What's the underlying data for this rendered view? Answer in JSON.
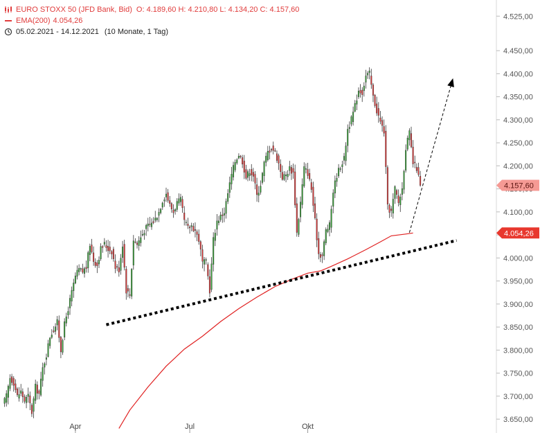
{
  "header": {
    "instrument": "EURO STOXX 50 (JFD Bank, Bid)",
    "ohlc": "O: 4.189,60  H: 4.210,80  L: 4.134,20  C: 4.157,60",
    "ema_label": "EMA(200)",
    "ema_value": "4.054,26",
    "date_range": "05.02.2021 - 14.12.2021",
    "period": "(10 Monate, 1 Tag)"
  },
  "colors": {
    "up": "#3aa33a",
    "down": "#e03b3b",
    "ema": "#e02020",
    "badge": "#e8382e",
    "badge_light": "#f59a94"
  },
  "chart_data": {
    "type": "candlestick",
    "ylim": [
      3620,
      4560
    ],
    "y_ticks": [
      "4.525,00",
      "4.450,00",
      "4.400,00",
      "4.350,00",
      "4.300,00",
      "4.250,00",
      "4.200,00",
      "4.150,00",
      "4.100,00",
      "4.050,00",
      "4.000,00",
      "3.950,00",
      "3.900,00",
      "3.850,00",
      "3.800,00",
      "3.750,00",
      "3.700,00",
      "3.650,00"
    ],
    "y_tick_values": [
      4525,
      4450,
      4400,
      4350,
      4300,
      4250,
      4200,
      4150,
      4100,
      4050,
      4000,
      3950,
      3900,
      3850,
      3800,
      3750,
      3700,
      3650
    ],
    "x_ticks": [
      {
        "label": "Apr",
        "day": 40
      },
      {
        "label": "Jul",
        "day": 103
      },
      {
        "label": "Okt",
        "day": 168
      }
    ],
    "x_day_range": [
      0,
      270
    ],
    "last_price_label": "4.157,60",
    "last_price": 4157.6,
    "ema_badge_label": "4.054,26",
    "ema_badge_value": 4054.26,
    "close_path": [
      [
        0,
        3680
      ],
      [
        2,
        3700
      ],
      [
        4,
        3740
      ],
      [
        6,
        3730
      ],
      [
        8,
        3700
      ],
      [
        10,
        3710
      ],
      [
        12,
        3690
      ],
      [
        14,
        3700
      ],
      [
        16,
        3665
      ],
      [
        18,
        3720
      ],
      [
        20,
        3705
      ],
      [
        22,
        3760
      ],
      [
        24,
        3790
      ],
      [
        26,
        3830
      ],
      [
        28,
        3845
      ],
      [
        30,
        3860
      ],
      [
        32,
        3800
      ],
      [
        34,
        3855
      ],
      [
        36,
        3890
      ],
      [
        38,
        3925
      ],
      [
        40,
        3960
      ],
      [
        42,
        3975
      ],
      [
        44,
        3970
      ],
      [
        46,
        3980
      ],
      [
        48,
        4030
      ],
      [
        50,
        3995
      ],
      [
        52,
        3985
      ],
      [
        54,
        4020
      ],
      [
        56,
        4030
      ],
      [
        58,
        4020
      ],
      [
        60,
        4015
      ],
      [
        62,
        3980
      ],
      [
        64,
        3975
      ],
      [
        66,
        4030
      ],
      [
        68,
        3930
      ],
      [
        70,
        3920
      ],
      [
        72,
        4040
      ],
      [
        74,
        4030
      ],
      [
        76,
        4045
      ],
      [
        78,
        4060
      ],
      [
        80,
        4070
      ],
      [
        82,
        4075
      ],
      [
        84,
        4085
      ],
      [
        86,
        4100
      ],
      [
        88,
        4125
      ],
      [
        90,
        4140
      ],
      [
        92,
        4115
      ],
      [
        94,
        4100
      ],
      [
        96,
        4120
      ],
      [
        98,
        4125
      ],
      [
        100,
        4080
      ],
      [
        102,
        4065
      ],
      [
        104,
        4070
      ],
      [
        106,
        4060
      ],
      [
        108,
        4040
      ],
      [
        110,
        3990
      ],
      [
        112,
        3990
      ],
      [
        114,
        3930
      ],
      [
        116,
        4040
      ],
      [
        118,
        4080
      ],
      [
        120,
        4090
      ],
      [
        122,
        4100
      ],
      [
        124,
        4140
      ],
      [
        126,
        4180
      ],
      [
        128,
        4210
      ],
      [
        130,
        4225
      ],
      [
        132,
        4210
      ],
      [
        134,
        4175
      ],
      [
        136,
        4190
      ],
      [
        138,
        4180
      ],
      [
        140,
        4135
      ],
      [
        142,
        4160
      ],
      [
        144,
        4205
      ],
      [
        146,
        4230
      ],
      [
        148,
        4240
      ],
      [
        150,
        4230
      ],
      [
        152,
        4205
      ],
      [
        154,
        4175
      ],
      [
        156,
        4180
      ],
      [
        158,
        4195
      ],
      [
        160,
        4185
      ],
      [
        162,
        4055
      ],
      [
        164,
        4120
      ],
      [
        166,
        4195
      ],
      [
        168,
        4185
      ],
      [
        170,
        4150
      ],
      [
        172,
        4080
      ],
      [
        174,
        4010
      ],
      [
        176,
        4005
      ],
      [
        178,
        4060
      ],
      [
        180,
        4070
      ],
      [
        182,
        4145
      ],
      [
        184,
        4180
      ],
      [
        186,
        4200
      ],
      [
        188,
        4215
      ],
      [
        190,
        4280
      ],
      [
        192,
        4300
      ],
      [
        194,
        4330
      ],
      [
        196,
        4365
      ],
      [
        198,
        4360
      ],
      [
        200,
        4395
      ],
      [
        202,
        4400
      ],
      [
        204,
        4350
      ],
      [
        206,
        4320
      ],
      [
        208,
        4295
      ],
      [
        210,
        4275
      ],
      [
        212,
        4110
      ],
      [
        214,
        4100
      ],
      [
        216,
        4150
      ],
      [
        218,
        4120
      ],
      [
        220,
        4150
      ],
      [
        222,
        4240
      ],
      [
        224,
        4270
      ],
      [
        226,
        4205
      ],
      [
        228,
        4195
      ],
      [
        230,
        4157.6
      ]
    ],
    "ema_path": [
      [
        64,
        3630
      ],
      [
        70,
        3670
      ],
      [
        80,
        3720
      ],
      [
        90,
        3765
      ],
      [
        100,
        3802
      ],
      [
        110,
        3830
      ],
      [
        120,
        3862
      ],
      [
        130,
        3890
      ],
      [
        140,
        3915
      ],
      [
        150,
        3938
      ],
      [
        160,
        3955
      ],
      [
        168,
        3967
      ],
      [
        175,
        3972
      ],
      [
        180,
        3980
      ],
      [
        190,
        3998
      ],
      [
        200,
        4018
      ],
      [
        208,
        4035
      ],
      [
        214,
        4048
      ],
      [
        222,
        4052
      ],
      [
        226,
        4054.26
      ]
    ],
    "trendline": {
      "start": [
        57,
        3855
      ],
      "end": [
        250,
        4038
      ]
    },
    "projection_arrow": {
      "start": [
        224,
        4055
      ],
      "end": [
        248,
        4390
      ]
    }
  }
}
